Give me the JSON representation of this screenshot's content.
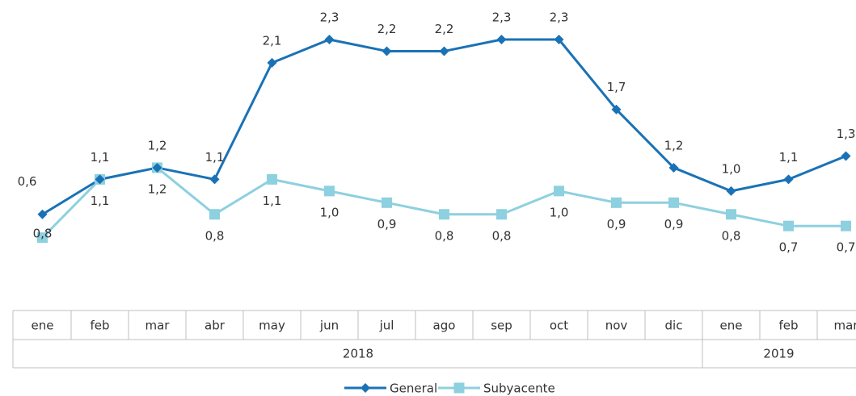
{
  "chart_data": {
    "type": "line",
    "groups": [
      {
        "label": "2018",
        "categories": [
          "ene",
          "feb",
          "mar",
          "abr",
          "may",
          "jun",
          "jul",
          "ago",
          "sep",
          "oct",
          "nov",
          "dic"
        ]
      },
      {
        "label": "2019",
        "categories": [
          "ene",
          "feb",
          "mar"
        ]
      }
    ],
    "series": [
      {
        "name": "General",
        "color": "#1a72b6",
        "marker": "diamond",
        "values": [
          0.8,
          1.1,
          1.2,
          1.1,
          2.1,
          2.3,
          2.2,
          2.2,
          2.3,
          2.3,
          1.7,
          1.2,
          1.0,
          1.1,
          1.3
        ],
        "value_labels": [
          "0,8",
          "1,1",
          "1,2",
          "1,1",
          "2,1",
          "2,3",
          "2,2",
          "2,2",
          "2,3",
          "2,3",
          "1,7",
          "1,2",
          "1,0",
          "1,1",
          "1,3"
        ]
      },
      {
        "name": "Subyacente",
        "color": "#8dd0df",
        "marker": "square",
        "values": [
          0.6,
          1.1,
          1.2,
          0.8,
          1.1,
          1.0,
          0.9,
          0.8,
          0.8,
          1.0,
          0.9,
          0.9,
          0.8,
          0.7,
          0.7
        ],
        "value_labels": [
          "0,6",
          "1,1",
          "1,2",
          "0,8",
          "1,1",
          "1,0",
          "0,9",
          "0,8",
          "0,8",
          "1,0",
          "0,9",
          "0,9",
          "0,8",
          "0,7",
          "0,7"
        ]
      }
    ],
    "legend": "bottom"
  }
}
